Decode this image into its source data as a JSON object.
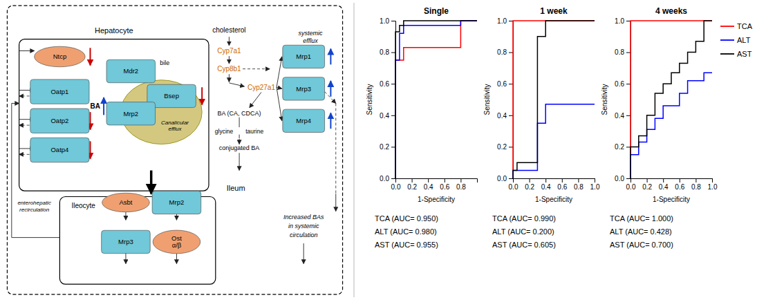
{
  "chart_data": [
    {
      "type": "diagram",
      "annotations": [
        "Hepatocyte",
        "Ntcp",
        "Oatp1",
        "Oatp2",
        "Oatp4",
        "BA",
        "Canalicular",
        "efflux",
        "Mdr2",
        "bile",
        "Bsep",
        "Mrp2",
        "cholesterol",
        "Cyp7a1",
        "Cyp8b1",
        "Cyp27a1",
        "BA (CA, CDCA)",
        "glycine",
        "taurine",
        "conjugated BA",
        "systemic",
        "efflux",
        "Mrp1",
        "Mrp3",
        "Mrp4",
        "Ileum",
        "Ileocyte",
        "Asbt",
        "Mrp2",
        "Mrp3",
        "Ost\nα/β",
        "enterohepatic",
        "recirculation",
        "Increased BAs",
        "in systemic",
        "circulation"
      ]
    },
    {
      "type": "line",
      "title": "Single",
      "xlabel": "1-Specificity",
      "ylabel": "Sensitivity",
      "xlim": [
        0.0,
        1.0
      ],
      "ylim": [
        0.0,
        1.0
      ],
      "xticks": [
        {
          "value": 0.0,
          "label": "0.0"
        },
        0.2,
        0.4,
        0.6,
        0.8
      ],
      "yticks": [
        {
          "value": 0.0,
          "label": "0.0"
        },
        0.2,
        0.4,
        0.6,
        0.8,
        {
          "value": 1.0,
          "label": "1.0"
        }
      ],
      "line_style": "step",
      "series": [
        {
          "color": "#FF0000",
          "x": [
            0.0,
            0.0,
            0.1,
            0.1,
            0.8,
            0.8,
            1.0
          ],
          "values": [
            0.0,
            0.75,
            0.75,
            0.83,
            0.83,
            1.0,
            1.0
          ]
        },
        {
          "color": "#0000FF",
          "x": [
            0.0,
            0.0,
            0.05,
            0.05,
            0.1,
            0.1,
            0.8,
            0.8,
            1.0
          ],
          "values": [
            0.0,
            0.75,
            0.75,
            0.92,
            0.92,
            0.97,
            0.97,
            1.0,
            1.0
          ]
        },
        {
          "color": "#000000",
          "x": [
            0.0,
            0.0,
            0.05,
            0.05,
            0.1,
            0.1,
            1.0
          ],
          "values": [
            0.0,
            0.93,
            0.93,
            0.97,
            0.97,
            1.0,
            1.0
          ]
        }
      ],
      "annotations": [
        "TCA (AUC= 0.950)",
        "ALT (AUC= 0.980)",
        "AST (AUC= 0.955)"
      ]
    },
    {
      "type": "line",
      "title": "1 week",
      "xlabel": "1-Specificity",
      "ylabel": "Sensitivity",
      "xlim": [
        0.0,
        1.0
      ],
      "ylim": [
        0.0,
        1.0
      ],
      "xticks": [
        {
          "value": 0.0,
          "label": "0.0"
        },
        0.2,
        0.4,
        0.6,
        0.8,
        {
          "value": 1.0,
          "label": "1.0"
        }
      ],
      "yticks": [
        {
          "value": 0.0,
          "label": "0.0"
        },
        0.2,
        0.4,
        0.6,
        0.8,
        {
          "value": 1.0,
          "label": "1.0"
        }
      ],
      "line_style": "step",
      "series": [
        {
          "color": "#FF0000",
          "x": [
            0.0,
            0.0,
            1.0
          ],
          "values": [
            0.0,
            1.0,
            1.0
          ]
        },
        {
          "color": "#0000FF",
          "x": [
            0.0,
            0.0,
            0.3,
            0.3,
            0.4,
            0.4,
            0.6,
            0.6,
            1.0
          ],
          "values": [
            0.0,
            0.05,
            0.05,
            0.35,
            0.35,
            0.47,
            0.47,
            0.47,
            0.47
          ]
        },
        {
          "color": "#000000",
          "x": [
            0.0,
            0.0,
            0.05,
            0.05,
            0.3,
            0.3,
            0.4,
            0.4,
            1.0
          ],
          "values": [
            0.0,
            0.05,
            0.05,
            0.1,
            0.1,
            0.9,
            0.9,
            1.0,
            1.0
          ]
        }
      ],
      "annotations": [
        "TCA (AUC= 0.990)",
        "ALT (AUC= 0.200)",
        "AST (AUC= 0.605)"
      ]
    },
    {
      "type": "line",
      "title": "4 weeks",
      "xlabel": "1-Specificity",
      "ylabel": "Sensitivity",
      "xlim": [
        0.0,
        1.0
      ],
      "ylim": [
        0.0,
        1.0
      ],
      "xticks": [
        {
          "value": 0.0,
          "label": "0.0"
        },
        0.2,
        0.4,
        0.6,
        0.8,
        {
          "value": 1.0,
          "label": "1.0"
        }
      ],
      "yticks": [
        {
          "value": 0.0,
          "label": "0.0"
        },
        0.2,
        0.4,
        0.6,
        0.8,
        {
          "value": 1.0,
          "label": "1.0"
        }
      ],
      "line_style": "step",
      "legend": "right",
      "series": [
        {
          "name": "TCA",
          "color": "#FF0000",
          "x": [
            0.0,
            0.0,
            1.0
          ],
          "values": [
            0.0,
            1.0,
            1.0
          ]
        },
        {
          "name": "ALT",
          "color": "#0000FF",
          "x": [
            0.0,
            0.0,
            0.1,
            0.1,
            0.2,
            0.2,
            0.3,
            0.3,
            0.4,
            0.4,
            0.6,
            0.6,
            0.7,
            0.7,
            0.9,
            0.9,
            1.0
          ],
          "values": [
            0.0,
            0.15,
            0.15,
            0.23,
            0.23,
            0.31,
            0.31,
            0.38,
            0.38,
            0.46,
            0.46,
            0.54,
            0.54,
            0.62,
            0.62,
            0.67,
            0.67
          ]
        },
        {
          "name": "AST",
          "color": "#000000",
          "x": [
            0.0,
            0.0,
            0.1,
            0.1,
            0.2,
            0.2,
            0.3,
            0.3,
            0.4,
            0.4,
            0.5,
            0.5,
            0.6,
            0.6,
            0.7,
            0.7,
            0.8,
            0.8,
            0.9,
            0.9,
            1.0
          ],
          "values": [
            0.0,
            0.2,
            0.2,
            0.27,
            0.27,
            0.4,
            0.4,
            0.54,
            0.54,
            0.6,
            0.6,
            0.67,
            0.67,
            0.73,
            0.73,
            0.8,
            0.8,
            0.87,
            0.87,
            1.0,
            1.0
          ]
        }
      ],
      "annotations": [
        "TCA (AUC= 1.000)",
        "ALT (AUC= 0.428)",
        "AST (AUC= 0.700)"
      ]
    }
  ]
}
